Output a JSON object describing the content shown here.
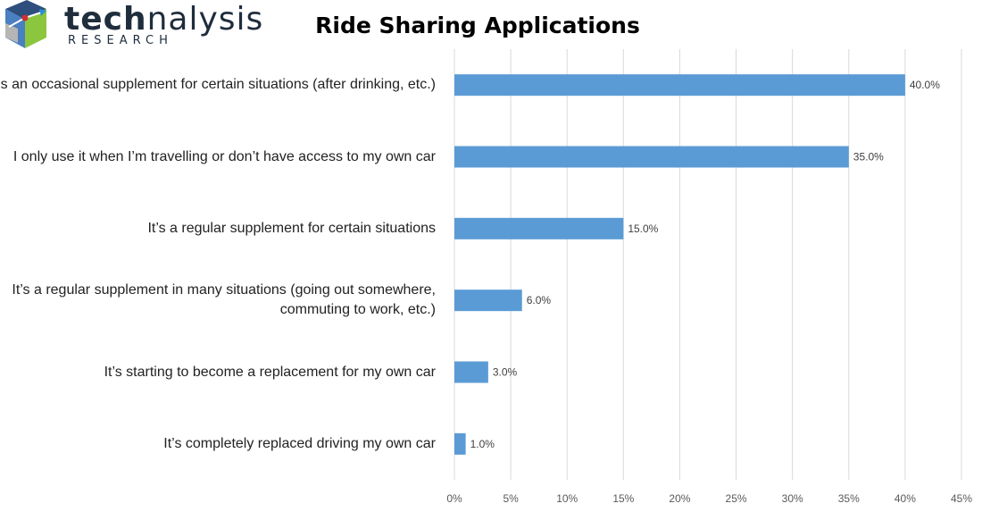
{
  "brand": {
    "name_bold": "tech",
    "name_light": "nalysis",
    "sub": "RESEARCH"
  },
  "chart_data": {
    "type": "bar",
    "orientation": "horizontal",
    "title": "Ride Sharing Applications",
    "categories": [
      "It’s an occasional supplement for certain situations (after drinking, etc.)",
      "I only use it when I’m travelling or don’t have access to my own car",
      "It’s a regular supplement for certain situations",
      "It’s a regular supplement in many situations (going out somewhere, commuting to work, etc.)",
      "It’s starting to become a replacement for my own car",
      "It’s completely replaced driving my own car"
    ],
    "category_lines": [
      [
        "It’s an occasional supplement for certain situations (after drinking, etc.)"
      ],
      [
        "I only use it when I’m travelling or don’t have access to my own car"
      ],
      [
        "It’s a regular supplement for certain situations"
      ],
      [
        "It’s a regular supplement in many situations (going out somewhere,",
        "commuting to work, etc.)"
      ],
      [
        "It’s starting to become a replacement for my own car"
      ],
      [
        "It’s completely replaced driving my own car"
      ]
    ],
    "values": [
      40.0,
      35.0,
      15.0,
      6.0,
      3.0,
      1.0
    ],
    "value_labels": [
      "40.0%",
      "35.0%",
      "15.0%",
      "6.0%",
      "3.0%",
      "1.0%"
    ],
    "xlim": [
      0,
      45
    ],
    "xticks": [
      0,
      5,
      10,
      15,
      20,
      25,
      30,
      35,
      40,
      45
    ],
    "xtick_labels": [
      "0%",
      "5%",
      "10%",
      "15%",
      "20%",
      "25%",
      "30%",
      "35%",
      "40%",
      "45%"
    ],
    "grid": true,
    "bar_color": "#5b9bd5",
    "grid_color": "#d9d9d9"
  }
}
